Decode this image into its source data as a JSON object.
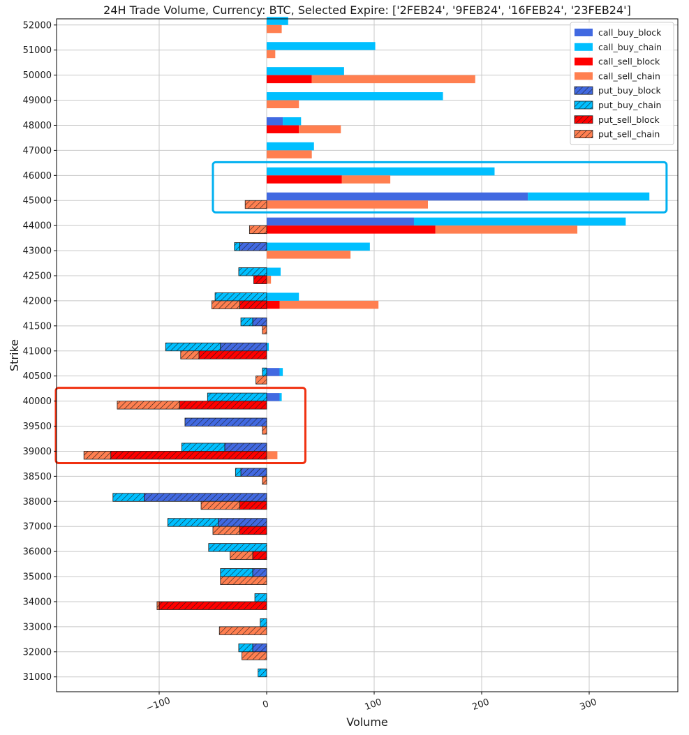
{
  "chart_data": {
    "type": "bar",
    "orientation": "horizontal",
    "title": "24H Trade Volume, Currency: BTC, Selected Expire: ['2FEB24', '9FEB24', '16FEB24', '23FEB24']",
    "xlabel": "Volume",
    "ylabel": "Strike",
    "xlim": [
      -197,
      382
    ],
    "x_ticks": [
      -100,
      0,
      100,
      200,
      300
    ],
    "x_tick_labels": [
      "−100",
      "0",
      "100",
      "200",
      "300"
    ],
    "grid": true,
    "legend_position": "top-right",
    "categories": [
      "31000",
      "32000",
      "33000",
      "34000",
      "35000",
      "36000",
      "37000",
      "38000",
      "38500",
      "39000",
      "39500",
      "40000",
      "40500",
      "41000",
      "41500",
      "42000",
      "42500",
      "43000",
      "44000",
      "45000",
      "46000",
      "47000",
      "48000",
      "49000",
      "50000",
      "51000",
      "52000"
    ],
    "series": [
      {
        "name": "call_buy_block",
        "color": "#4169e1",
        "hatch": false,
        "kind": "call",
        "row": "buy",
        "values": [
          0,
          0,
          0,
          0,
          0,
          0,
          0,
          0,
          0,
          0,
          0,
          12,
          12,
          0,
          0,
          0,
          0,
          0,
          137,
          243,
          0,
          0,
          15,
          0,
          0,
          0,
          0
        ]
      },
      {
        "name": "call_buy_chain",
        "color": "#00bfff",
        "hatch": false,
        "kind": "call",
        "row": "buy",
        "values": [
          0,
          0,
          0,
          0,
          0,
          0,
          0,
          0,
          0,
          0,
          0,
          2,
          3,
          2,
          0,
          30,
          13,
          96,
          197,
          113,
          212,
          44,
          17,
          164,
          72,
          101,
          20
        ]
      },
      {
        "name": "call_sell_block",
        "color": "#ff0000",
        "hatch": false,
        "kind": "call",
        "row": "sell",
        "values": [
          0,
          0,
          0,
          0,
          0,
          0,
          0,
          0,
          0,
          0,
          0,
          0,
          0,
          0,
          0,
          12,
          0,
          0,
          157,
          0,
          70,
          0,
          30,
          0,
          42,
          0,
          0
        ]
      },
      {
        "name": "call_sell_chain",
        "color": "#ff7f50",
        "hatch": false,
        "kind": "call",
        "row": "sell",
        "values": [
          0,
          0,
          0,
          0,
          0,
          0,
          0,
          0,
          0,
          10,
          0,
          0,
          0,
          0,
          0,
          92,
          4,
          78,
          132,
          150,
          45,
          42,
          39,
          30,
          152,
          8,
          14
        ]
      },
      {
        "name": "put_buy_block",
        "color": "#4169e1",
        "hatch": true,
        "kind": "put",
        "row": "buy",
        "values": [
          0,
          13,
          0,
          0,
          13,
          0,
          45,
          114,
          24,
          39,
          76,
          0,
          0,
          43,
          13,
          0,
          0,
          25,
          0,
          0,
          0,
          0,
          0,
          0,
          0,
          0,
          0
        ]
      },
      {
        "name": "put_buy_chain",
        "color": "#00bfff",
        "hatch": true,
        "kind": "put",
        "row": "buy",
        "values": [
          8,
          13,
          6,
          11,
          30,
          54,
          47,
          29,
          5,
          40,
          0,
          55,
          4,
          51,
          11,
          48,
          26,
          5,
          0,
          0,
          0,
          0,
          0,
          0,
          0,
          0,
          0
        ]
      },
      {
        "name": "put_sell_block",
        "color": "#ff0000",
        "hatch": true,
        "kind": "put",
        "row": "sell",
        "values": [
          0,
          0,
          0,
          100,
          0,
          13,
          25,
          25,
          0,
          145,
          0,
          81,
          0,
          63,
          0,
          25,
          12,
          0,
          0,
          0,
          0,
          0,
          0,
          0,
          0,
          0,
          0
        ]
      },
      {
        "name": "put_sell_chain",
        "color": "#ff7f50",
        "hatch": true,
        "kind": "put",
        "row": "sell",
        "values": [
          0,
          23,
          44,
          2,
          43,
          21,
          25,
          36,
          4,
          25,
          4,
          58,
          10,
          17,
          4,
          26,
          0,
          0,
          16,
          20,
          0,
          0,
          0,
          0,
          0,
          0,
          0
        ]
      }
    ],
    "highlight_boxes": [
      {
        "color": "#00b0f0",
        "x_range": [
          -50,
          372
        ],
        "strikes": [
          "45000",
          "46000"
        ]
      },
      {
        "color": "#f03010",
        "x_range": [
          -197,
          36
        ],
        "strikes": [
          "39000",
          "40000"
        ]
      }
    ]
  }
}
